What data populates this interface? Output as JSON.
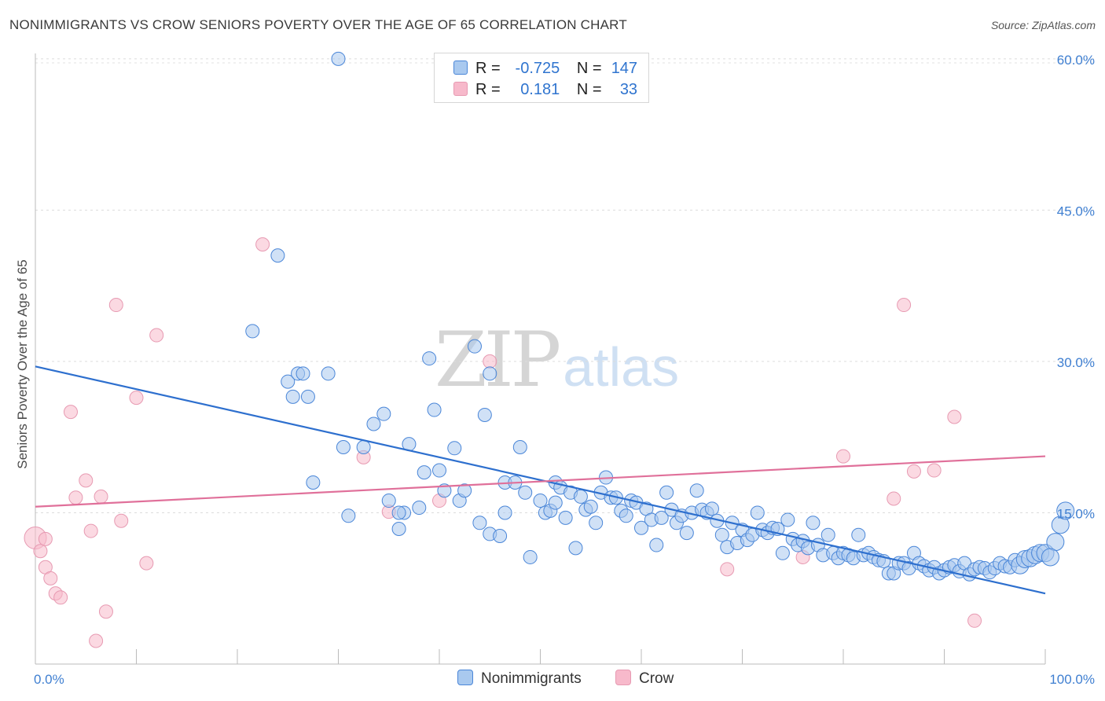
{
  "title": "NONIMMIGRANTS VS CROW SENIORS POVERTY OVER THE AGE OF 65 CORRELATION CHART",
  "source": "Source: ZipAtlas.com",
  "watermark": {
    "zip": "ZIP",
    "atlas": "atlas"
  },
  "legend": {
    "rows": [
      {
        "r_label": "R =",
        "r_value": "-0.725",
        "n_label": "N =",
        "n_value": "147",
        "color": "#a9c9ef"
      },
      {
        "r_label": "R =",
        "r_value": "0.181",
        "n_label": "N =",
        "n_value": "33",
        "color": "#f7b9cb"
      }
    ]
  },
  "bottom_legend": [
    {
      "label": "Nonimmigrants",
      "color": "#a9c9ef"
    },
    {
      "label": "Crow",
      "color": "#f7b9cb"
    }
  ],
  "chart_data": {
    "type": "scatter",
    "title": "NONIMMIGRANTS VS CROW SENIORS POVERTY OVER THE AGE OF 65 CORRELATION CHART",
    "ylabel": "Seniors Poverty Over the Age of 65",
    "xlabel": "",
    "xlim": [
      0,
      100
    ],
    "ylim": [
      0,
      61
    ],
    "x_tick_labels": [
      "0.0%",
      "100.0%"
    ],
    "y_ticks": [
      15,
      30,
      45,
      60
    ],
    "y_tick_labels": [
      "15.0%",
      "30.0%",
      "45.0%",
      "60.0%"
    ],
    "grid": true,
    "legend_placement": "top-center",
    "series": [
      {
        "name": "Nonimmigrants",
        "color": "#4a86d8",
        "fill": "#a9c9ef",
        "trend": {
          "x": [
            0,
            100
          ],
          "y": [
            29.5,
            7.0
          ],
          "color": "#2d6fce"
        },
        "points": [
          [
            30.0,
            60.0
          ],
          [
            24.0,
            40.5
          ],
          [
            21.5,
            33.0
          ],
          [
            25.0,
            28.0
          ],
          [
            25.5,
            26.5
          ],
          [
            26.0,
            28.8
          ],
          [
            26.5,
            28.8
          ],
          [
            27.0,
            26.5
          ],
          [
            29.0,
            28.8
          ],
          [
            30.5,
            21.5
          ],
          [
            31.0,
            14.7
          ],
          [
            27.5,
            18.0
          ],
          [
            32.5,
            21.5
          ],
          [
            33.5,
            23.8
          ],
          [
            34.5,
            24.8
          ],
          [
            35.0,
            16.2
          ],
          [
            36.0,
            13.4
          ],
          [
            36.5,
            15.0
          ],
          [
            36.0,
            15.0
          ],
          [
            37.0,
            21.8
          ],
          [
            38.0,
            15.5
          ],
          [
            38.5,
            19.0
          ],
          [
            39.0,
            30.3
          ],
          [
            39.5,
            25.2
          ],
          [
            40.0,
            19.2
          ],
          [
            40.5,
            17.2
          ],
          [
            41.5,
            21.4
          ],
          [
            42.0,
            16.2
          ],
          [
            42.5,
            17.2
          ],
          [
            43.5,
            31.5
          ],
          [
            44.0,
            14.0
          ],
          [
            44.5,
            24.7
          ],
          [
            45.0,
            28.8
          ],
          [
            45.0,
            12.9
          ],
          [
            46.0,
            12.7
          ],
          [
            46.5,
            15.0
          ],
          [
            46.5,
            18.0
          ],
          [
            47.5,
            18.0
          ],
          [
            48.0,
            21.5
          ],
          [
            48.5,
            17.0
          ],
          [
            49.0,
            10.6
          ],
          [
            50.0,
            16.2
          ],
          [
            50.5,
            15.0
          ],
          [
            51.0,
            15.2
          ],
          [
            51.5,
            16.0
          ],
          [
            51.5,
            18.0
          ],
          [
            52.0,
            17.5
          ],
          [
            52.5,
            14.5
          ],
          [
            53.0,
            17.0
          ],
          [
            53.5,
            11.5
          ],
          [
            54.0,
            16.6
          ],
          [
            54.5,
            15.3
          ],
          [
            55.0,
            15.6
          ],
          [
            55.5,
            14.0
          ],
          [
            56.0,
            17.0
          ],
          [
            56.5,
            18.5
          ],
          [
            57.0,
            16.5
          ],
          [
            57.5,
            16.5
          ],
          [
            58.0,
            15.2
          ],
          [
            58.5,
            14.7
          ],
          [
            59.0,
            16.2
          ],
          [
            59.5,
            16.0
          ],
          [
            60.0,
            13.5
          ],
          [
            60.5,
            15.4
          ],
          [
            61.0,
            14.3
          ],
          [
            61.5,
            11.8
          ],
          [
            62.0,
            14.5
          ],
          [
            62.5,
            17.0
          ],
          [
            63.0,
            15.3
          ],
          [
            63.5,
            14.0
          ],
          [
            64.0,
            14.7
          ],
          [
            64.5,
            13.0
          ],
          [
            65.0,
            15.0
          ],
          [
            65.5,
            17.2
          ],
          [
            66.0,
            15.3
          ],
          [
            66.5,
            15.0
          ],
          [
            67.0,
            15.4
          ],
          [
            67.5,
            14.2
          ],
          [
            68.0,
            12.8
          ],
          [
            68.5,
            11.6
          ],
          [
            69.0,
            14.0
          ],
          [
            69.5,
            12.0
          ],
          [
            70.0,
            13.3
          ],
          [
            70.5,
            12.3
          ],
          [
            71.0,
            12.8
          ],
          [
            71.5,
            15.0
          ],
          [
            72.0,
            13.3
          ],
          [
            72.5,
            13.0
          ],
          [
            73.0,
            13.5
          ],
          [
            73.5,
            13.4
          ],
          [
            74.0,
            11.0
          ],
          [
            74.5,
            14.3
          ],
          [
            75.0,
            12.4
          ],
          [
            75.5,
            11.8
          ],
          [
            76.0,
            12.2
          ],
          [
            76.5,
            11.5
          ],
          [
            77.0,
            14.0
          ],
          [
            77.5,
            11.8
          ],
          [
            78.0,
            10.8
          ],
          [
            78.5,
            12.8
          ],
          [
            79.0,
            11.0
          ],
          [
            79.5,
            10.5
          ],
          [
            80.0,
            11.0
          ],
          [
            80.5,
            10.8
          ],
          [
            81.0,
            10.5
          ],
          [
            81.5,
            12.8
          ],
          [
            82.0,
            10.8
          ],
          [
            82.5,
            11.0
          ],
          [
            83.0,
            10.6
          ],
          [
            83.5,
            10.3
          ],
          [
            84.0,
            10.2
          ],
          [
            84.5,
            9.0
          ],
          [
            85.0,
            9.0
          ],
          [
            85.5,
            10.0
          ],
          [
            86.0,
            10.0
          ],
          [
            86.5,
            9.5
          ],
          [
            87.0,
            11.0
          ],
          [
            87.5,
            10.0
          ],
          [
            88.0,
            9.7
          ],
          [
            88.5,
            9.3
          ],
          [
            89.0,
            9.6
          ],
          [
            89.5,
            9.0
          ],
          [
            90.0,
            9.3
          ],
          [
            90.5,
            9.6
          ],
          [
            91.0,
            9.8
          ],
          [
            91.5,
            9.2
          ],
          [
            92.0,
            10.0
          ],
          [
            92.5,
            8.9
          ],
          [
            93.0,
            9.4
          ],
          [
            93.5,
            9.6
          ],
          [
            94.0,
            9.5
          ],
          [
            94.5,
            9.1
          ],
          [
            95.0,
            9.5
          ],
          [
            95.5,
            10.0
          ],
          [
            96.0,
            9.7
          ],
          [
            96.5,
            9.6
          ],
          [
            97.0,
            10.3
          ],
          [
            97.5,
            9.8
          ],
          [
            98.0,
            10.4
          ],
          [
            98.5,
            10.5
          ],
          [
            99.0,
            10.8
          ],
          [
            99.5,
            11.0
          ],
          [
            100.0,
            11.0
          ],
          [
            101.0,
            12.1
          ],
          [
            101.5,
            13.8
          ],
          [
            102.0,
            15.2
          ],
          [
            100.5,
            10.6
          ]
        ]
      },
      {
        "name": "Crow",
        "color": "#e79ab2",
        "fill": "#f7b9cb",
        "trend": {
          "x": [
            0,
            100
          ],
          "y": [
            15.6,
            20.6
          ],
          "color": "#e0709a"
        },
        "points": [
          [
            0.0,
            12.5
          ],
          [
            0.5,
            11.2
          ],
          [
            1.0,
            9.6
          ],
          [
            1.5,
            8.5
          ],
          [
            2.0,
            7.0
          ],
          [
            2.5,
            6.6
          ],
          [
            3.5,
            25.0
          ],
          [
            4.0,
            16.5
          ],
          [
            5.0,
            18.2
          ],
          [
            5.5,
            13.2
          ],
          [
            6.0,
            2.3
          ],
          [
            6.5,
            16.6
          ],
          [
            7.0,
            5.2
          ],
          [
            8.0,
            35.6
          ],
          [
            8.5,
            14.2
          ],
          [
            10.0,
            26.4
          ],
          [
            11.0,
            10.0
          ],
          [
            12.0,
            32.6
          ],
          [
            1.0,
            12.4
          ],
          [
            22.5,
            41.6
          ],
          [
            32.5,
            20.5
          ],
          [
            35.0,
            15.1
          ],
          [
            40.0,
            16.2
          ],
          [
            45.0,
            30.0
          ],
          [
            68.5,
            9.4
          ],
          [
            76.0,
            10.6
          ],
          [
            80.0,
            20.6
          ],
          [
            85.0,
            16.4
          ],
          [
            86.0,
            35.6
          ],
          [
            87.0,
            19.1
          ],
          [
            89.0,
            19.2
          ],
          [
            91.0,
            24.5
          ],
          [
            93.0,
            4.3
          ]
        ]
      }
    ]
  }
}
